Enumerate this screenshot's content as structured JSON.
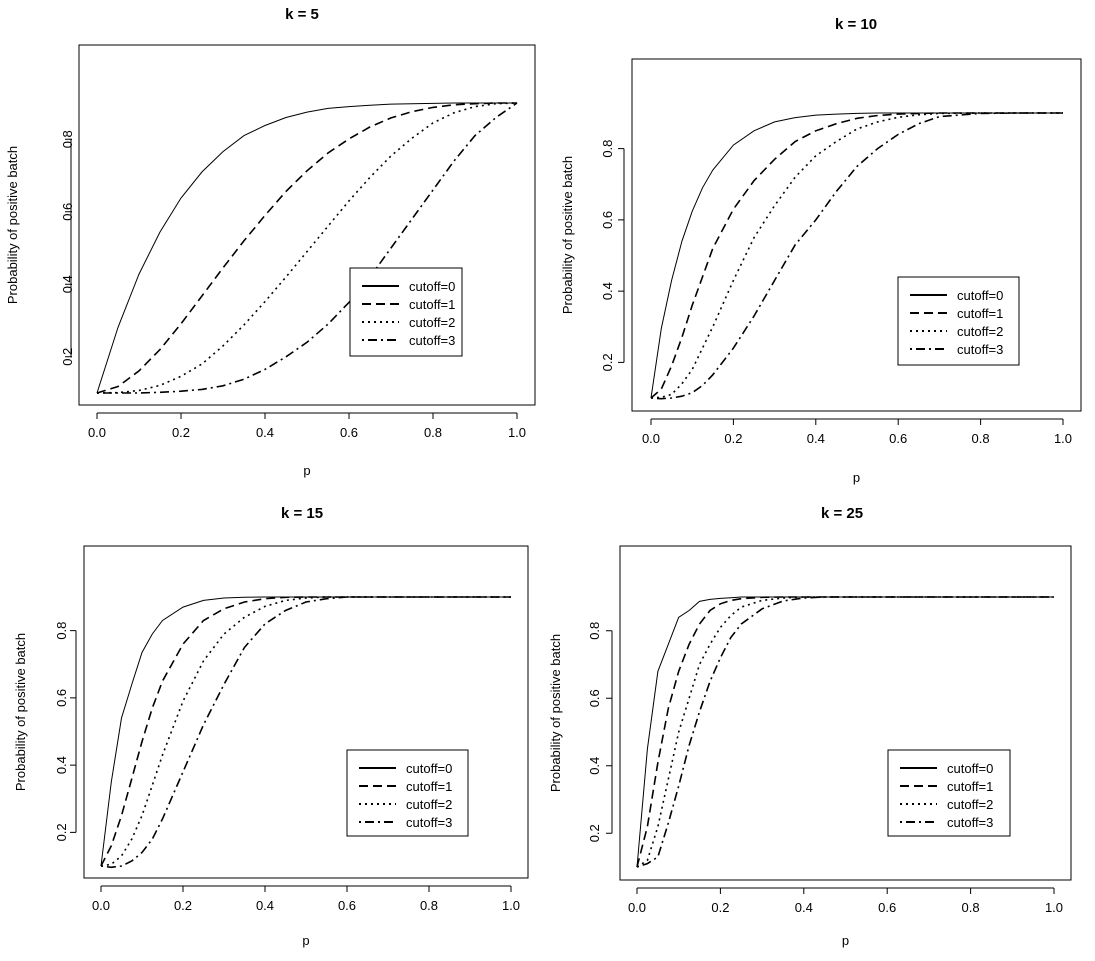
{
  "chart_data": [
    {
      "type": "line",
      "title": "k = 5",
      "xlabel": "p",
      "ylabel": "Probability of positive batch",
      "xlim": [
        0,
        1
      ],
      "ylim": [
        0.08,
        0.92
      ],
      "xticks": [
        0,
        0.2,
        0.4,
        0.6,
        0.8,
        1
      ],
      "xtick_labels": [
        "0.0",
        "0.2",
        "0.4",
        "0.6",
        "0.8",
        "1.0"
      ],
      "yticks": [
        0.2,
        0.4,
        0.6,
        0.8
      ],
      "ytick_labels": [
        "0.2",
        "0.4",
        "0.6",
        "0.8"
      ],
      "grid": false,
      "legend_position": "center-right",
      "x": [
        0,
        0.05,
        0.1,
        0.15,
        0.2,
        0.25,
        0.3,
        0.35,
        0.4,
        0.45,
        0.5,
        0.55,
        0.6,
        0.65,
        0.7,
        0.75,
        0.8,
        0.85,
        0.9,
        0.95,
        1
      ],
      "series": [
        {
          "name": "cutoff=0",
          "dash": "solid",
          "values": [
            0.1,
            0.281,
            0.428,
            0.544,
            0.638,
            0.71,
            0.766,
            0.81,
            0.838,
            0.86,
            0.875,
            0.885,
            0.89,
            0.894,
            0.897,
            0.898,
            0.899,
            0.9,
            0.9,
            0.9,
            0.9
          ]
        },
        {
          "name": "cutoff=1",
          "dash": "dashed",
          "values": [
            0.1,
            0.118,
            0.161,
            0.22,
            0.291,
            0.368,
            0.445,
            0.52,
            0.59,
            0.656,
            0.713,
            0.762,
            0.801,
            0.834,
            0.859,
            0.876,
            0.888,
            0.895,
            0.898,
            0.9,
            0.9
          ]
        },
        {
          "name": "cutoff=2",
          "dash": "dotted",
          "values": [
            0.1,
            0.101,
            0.107,
            0.121,
            0.146,
            0.18,
            0.23,
            0.288,
            0.352,
            0.42,
            0.49,
            0.56,
            0.63,
            0.695,
            0.754,
            0.803,
            0.845,
            0.873,
            0.89,
            0.898,
            0.9
          ]
        },
        {
          "name": "cutoff=3",
          "dash": "dotdash",
          "values": [
            0.1,
            0.1,
            0.1,
            0.102,
            0.105,
            0.11,
            0.12,
            0.138,
            0.165,
            0.2,
            0.24,
            0.29,
            0.35,
            0.42,
            0.5,
            0.58,
            0.66,
            0.74,
            0.81,
            0.86,
            0.9
          ]
        }
      ]
    },
    {
      "type": "line",
      "title": "k = 10",
      "xlabel": "p",
      "ylabel": "Probability of positive batch",
      "xlim": [
        0,
        1
      ],
      "ylim": [
        0.08,
        0.92
      ],
      "xticks": [
        0,
        0.2,
        0.4,
        0.6,
        0.8,
        1
      ],
      "xtick_labels": [
        "0.0",
        "0.2",
        "0.4",
        "0.6",
        "0.8",
        "1.0"
      ],
      "yticks": [
        0.2,
        0.4,
        0.6,
        0.8
      ],
      "ytick_labels": [
        "0.2",
        "0.4",
        "0.6",
        "0.8"
      ],
      "grid": false,
      "legend_position": "bottom-right",
      "x": [
        0,
        0.025,
        0.05,
        0.075,
        0.1,
        0.125,
        0.15,
        0.2,
        0.25,
        0.3,
        0.35,
        0.4,
        0.45,
        0.5,
        0.55,
        0.6,
        0.65,
        0.7,
        0.8,
        0.9,
        1
      ],
      "series": [
        {
          "name": "cutoff=0",
          "dash": "solid",
          "values": [
            0.1,
            0.295,
            0.43,
            0.54,
            0.624,
            0.69,
            0.74,
            0.81,
            0.85,
            0.875,
            0.887,
            0.894,
            0.897,
            0.899,
            0.9,
            0.9,
            0.9,
            0.9,
            0.9,
            0.9,
            0.9
          ]
        },
        {
          "name": "cutoff=1",
          "dash": "dashed",
          "values": [
            0.1,
            0.125,
            0.19,
            0.27,
            0.36,
            0.44,
            0.52,
            0.63,
            0.71,
            0.77,
            0.82,
            0.85,
            0.87,
            0.885,
            0.893,
            0.897,
            0.899,
            0.9,
            0.9,
            0.9,
            0.9
          ]
        },
        {
          "name": "cutoff=2",
          "dash": "dotted",
          "values": [
            0.1,
            0.102,
            0.11,
            0.14,
            0.18,
            0.24,
            0.3,
            0.43,
            0.55,
            0.64,
            0.72,
            0.78,
            0.82,
            0.855,
            0.875,
            0.888,
            0.895,
            0.899,
            0.9,
            0.9,
            0.9
          ]
        },
        {
          "name": "cutoff=3",
          "dash": "dotdash",
          "values": [
            0.1,
            0.098,
            0.1,
            0.105,
            0.115,
            0.135,
            0.165,
            0.24,
            0.33,
            0.43,
            0.53,
            0.6,
            0.68,
            0.75,
            0.8,
            0.84,
            0.87,
            0.89,
            0.899,
            0.9,
            0.9
          ]
        }
      ]
    },
    {
      "type": "line",
      "title": "k = 15",
      "xlabel": "p",
      "ylabel": "Probability of positive batch",
      "xlim": [
        0,
        1
      ],
      "ylim": [
        0.08,
        0.92
      ],
      "xticks": [
        0,
        0.2,
        0.4,
        0.6,
        0.8,
        1
      ],
      "xtick_labels": [
        "0.0",
        "0.2",
        "0.4",
        "0.6",
        "0.8",
        "1.0"
      ],
      "yticks": [
        0.2,
        0.4,
        0.6,
        0.8
      ],
      "ytick_labels": [
        "0.2",
        "0.4",
        "0.6",
        "0.8"
      ],
      "grid": false,
      "legend_position": "bottom-right",
      "x": [
        0,
        0.025,
        0.05,
        0.075,
        0.1,
        0.125,
        0.15,
        0.2,
        0.25,
        0.3,
        0.35,
        0.4,
        0.45,
        0.5,
        0.55,
        0.6,
        0.7,
        0.8,
        0.9,
        1
      ],
      "series": [
        {
          "name": "cutoff=0",
          "dash": "solid",
          "values": [
            0.1,
            0.35,
            0.54,
            0.64,
            0.735,
            0.79,
            0.83,
            0.87,
            0.89,
            0.897,
            0.899,
            0.9,
            0.9,
            0.9,
            0.9,
            0.9,
            0.9,
            0.9,
            0.9,
            0.9
          ]
        },
        {
          "name": "cutoff=1",
          "dash": "dashed",
          "values": [
            0.1,
            0.16,
            0.25,
            0.36,
            0.47,
            0.57,
            0.65,
            0.76,
            0.83,
            0.865,
            0.885,
            0.895,
            0.899,
            0.9,
            0.9,
            0.9,
            0.9,
            0.9,
            0.9,
            0.9
          ]
        },
        {
          "name": "cutoff=2",
          "dash": "dotted",
          "values": [
            0.1,
            0.105,
            0.13,
            0.18,
            0.25,
            0.34,
            0.43,
            0.59,
            0.71,
            0.79,
            0.84,
            0.872,
            0.89,
            0.897,
            0.9,
            0.9,
            0.9,
            0.9,
            0.9,
            0.9
          ]
        },
        {
          "name": "cutoff=3",
          "dash": "dotdash",
          "values": [
            0.1,
            0.096,
            0.1,
            0.115,
            0.14,
            0.18,
            0.24,
            0.38,
            0.52,
            0.64,
            0.75,
            0.82,
            0.86,
            0.885,
            0.895,
            0.9,
            0.9,
            0.9,
            0.9,
            0.9
          ]
        }
      ]
    },
    {
      "type": "line",
      "title": "k = 25",
      "xlabel": "p",
      "ylabel": "Probability of positive batch",
      "xlim": [
        0,
        1
      ],
      "ylim": [
        0.08,
        0.92
      ],
      "xticks": [
        0,
        0.2,
        0.4,
        0.6,
        0.8,
        1
      ],
      "xtick_labels": [
        "0.0",
        "0.2",
        "0.4",
        "0.6",
        "0.8",
        "1.0"
      ],
      "yticks": [
        0.2,
        0.4,
        0.6,
        0.8
      ],
      "ytick_labels": [
        "0.2",
        "0.4",
        "0.6",
        "0.8"
      ],
      "grid": false,
      "legend_position": "bottom-right",
      "x": [
        0,
        0.025,
        0.05,
        0.075,
        0.1,
        0.125,
        0.15,
        0.175,
        0.2,
        0.225,
        0.25,
        0.3,
        0.35,
        0.4,
        0.45,
        0.5,
        0.6,
        0.7,
        0.8,
        0.9,
        1
      ],
      "series": [
        {
          "name": "cutoff=0",
          "dash": "solid",
          "values": [
            0.1,
            0.45,
            0.68,
            0.76,
            0.84,
            0.86,
            0.887,
            0.893,
            0.896,
            0.898,
            0.9,
            0.9,
            0.9,
            0.9,
            0.9,
            0.9,
            0.9,
            0.9,
            0.9,
            0.9,
            0.9
          ]
        },
        {
          "name": "cutoff=1",
          "dash": "dashed",
          "values": [
            0.1,
            0.22,
            0.41,
            0.57,
            0.68,
            0.76,
            0.82,
            0.86,
            0.88,
            0.89,
            0.895,
            0.899,
            0.9,
            0.9,
            0.9,
            0.9,
            0.9,
            0.9,
            0.9,
            0.9,
            0.9
          ]
        },
        {
          "name": "cutoff=2",
          "dash": "dotted",
          "values": [
            0.1,
            0.12,
            0.22,
            0.36,
            0.5,
            0.6,
            0.7,
            0.76,
            0.81,
            0.845,
            0.87,
            0.89,
            0.897,
            0.9,
            0.9,
            0.9,
            0.9,
            0.9,
            0.9,
            0.9,
            0.9
          ]
        },
        {
          "name": "cutoff=3",
          "dash": "dotdash",
          "values": [
            0.1,
            0.11,
            0.13,
            0.23,
            0.34,
            0.46,
            0.56,
            0.65,
            0.72,
            0.78,
            0.82,
            0.865,
            0.888,
            0.897,
            0.9,
            0.9,
            0.9,
            0.9,
            0.9,
            0.9,
            0.9
          ]
        }
      ]
    }
  ]
}
